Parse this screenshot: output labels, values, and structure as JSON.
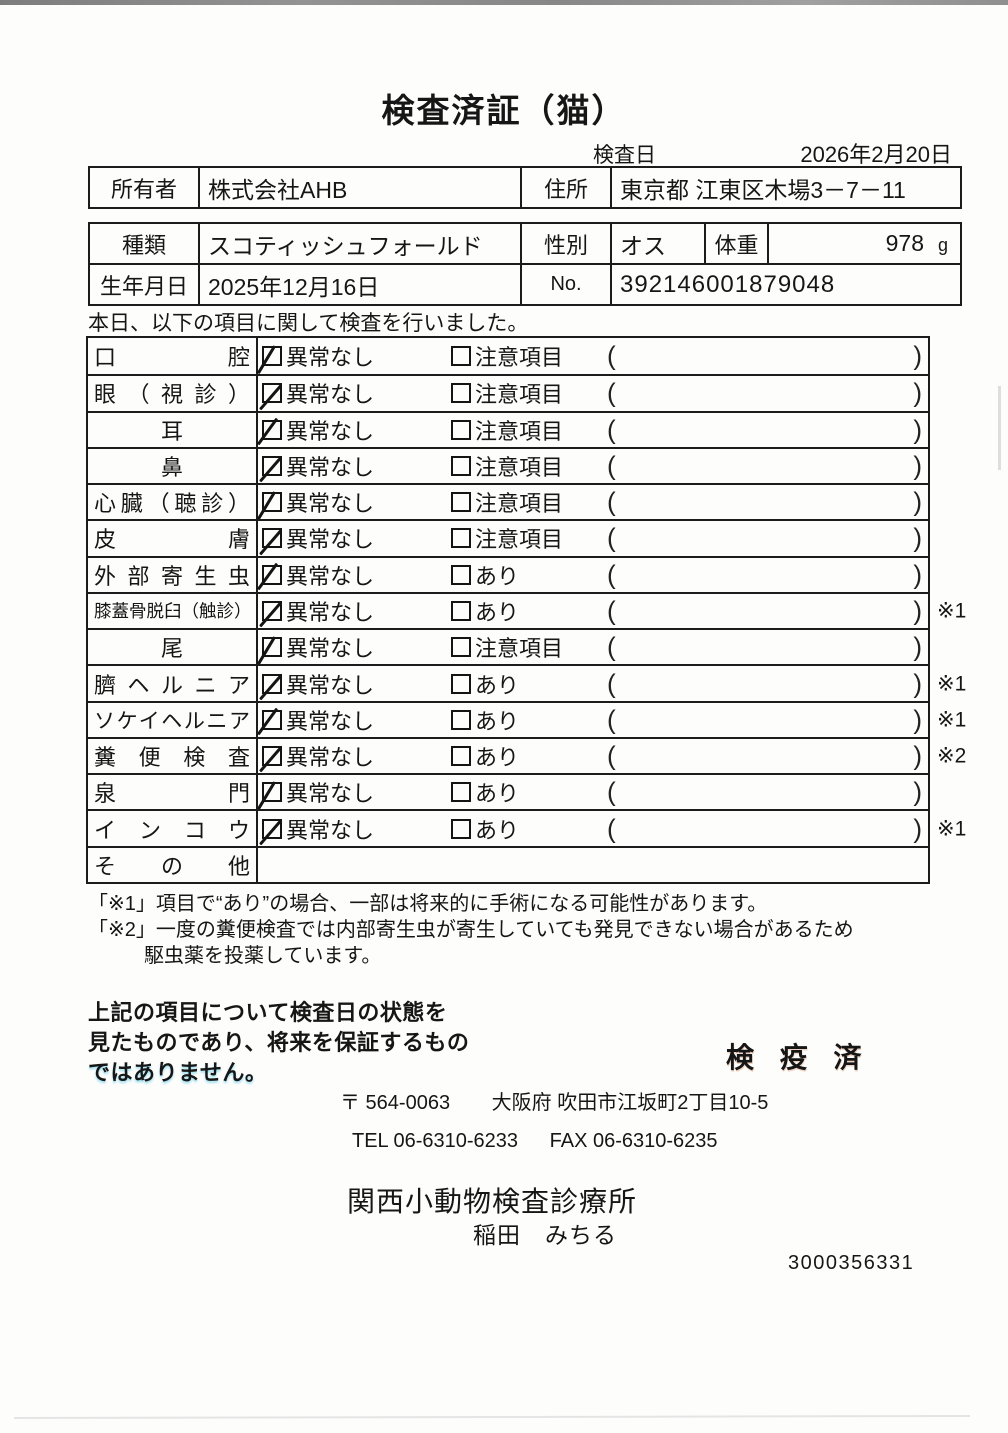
{
  "header": {
    "title": "検査済証（猫）",
    "date_label": "検査日",
    "date_value": "2026年2月20日"
  },
  "owner": {
    "owner_label": "所有者",
    "owner_value": "株式会社AHB",
    "address_label": "住所",
    "address_value": "東京都 江東区木場3－7－11"
  },
  "animal": {
    "breed_label": "種類",
    "breed_value": "スコティッシュフォールド",
    "sex_label": "性別",
    "sex_value": "オス",
    "weight_label": "体重",
    "weight_value": "978",
    "weight_unit": "g",
    "birth_label": "生年月日",
    "birth_value": "2025年12月16日",
    "no_label": "No.",
    "no_value": "392146001879048"
  },
  "exam": {
    "intro": "本日、以下の項目に関して検査を行いました。",
    "ok_label": "異常なし",
    "paren_open": "(",
    "paren_close": ")",
    "rows": [
      {
        "label": "口腔",
        "align": "justify",
        "second": "注意項目",
        "mark": "",
        "checked": "ok"
      },
      {
        "label": "眼（視診）",
        "align": "justify",
        "second": "注意項目",
        "mark": "",
        "checked": "ok"
      },
      {
        "label": "耳",
        "align": "center",
        "second": "注意項目",
        "mark": "",
        "checked": "ok"
      },
      {
        "label": "鼻",
        "align": "center",
        "second": "注意項目",
        "mark": "",
        "checked": "ok"
      },
      {
        "label": "心臓（聴診）",
        "align": "justify",
        "second": "注意項目",
        "mark": "",
        "checked": "ok"
      },
      {
        "label": "皮膚",
        "align": "justify",
        "second": "注意項目",
        "mark": "",
        "checked": "ok"
      },
      {
        "label": "外部寄生虫",
        "align": "justify",
        "second": "あり",
        "mark": "",
        "checked": "ok"
      },
      {
        "label": "膝蓋骨脱臼（触診）",
        "align": "small",
        "second": "あり",
        "mark": "※1",
        "checked": "ok"
      },
      {
        "label": "尾",
        "align": "center",
        "second": "注意項目",
        "mark": "",
        "checked": "ok"
      },
      {
        "label": "臍ヘルニア",
        "align": "justify",
        "second": "あり",
        "mark": "※1",
        "checked": "ok"
      },
      {
        "label": "ソケイヘルニア",
        "align": "tight",
        "second": "あり",
        "mark": "※1",
        "checked": "ok"
      },
      {
        "label": "糞便検査",
        "align": "justify",
        "second": "あり",
        "mark": "※2",
        "checked": "ok"
      },
      {
        "label": "泉門",
        "align": "justify",
        "second": "あり",
        "mark": "",
        "checked": "ok"
      },
      {
        "label": "インコウ",
        "align": "justify",
        "second": "あり",
        "mark": "※1",
        "checked": "ok"
      },
      {
        "label": "その他",
        "align": "justify",
        "second": "",
        "mark": "",
        "checked": "none",
        "type": "other"
      }
    ]
  },
  "notes": {
    "line1": "「※1」項目で“あり”の場合、一部は将来的に手術になる可能性があります。",
    "line2": "「※2」一度の糞便検査では内部寄生虫が寄生していても発見できない場合があるため",
    "line3": "駆虫薬を投薬しています。"
  },
  "footer": {
    "disclaimer1": "上記の項目について検査日の状態を",
    "disclaimer2": "見たものであり、将来を保証するもの",
    "disclaimer3": "ではありません。",
    "stamp": "検 疫 済",
    "postal": "〒 564-0063",
    "address": "大阪府 吹田市江坂町2丁目10-5",
    "tel": "TEL 06-6310-6233",
    "fax": "FAX 06-6310-6235",
    "clinic": "関西小動物検査診療所",
    "veterinarian": "稲田　みちる",
    "serial": "3000356331"
  }
}
